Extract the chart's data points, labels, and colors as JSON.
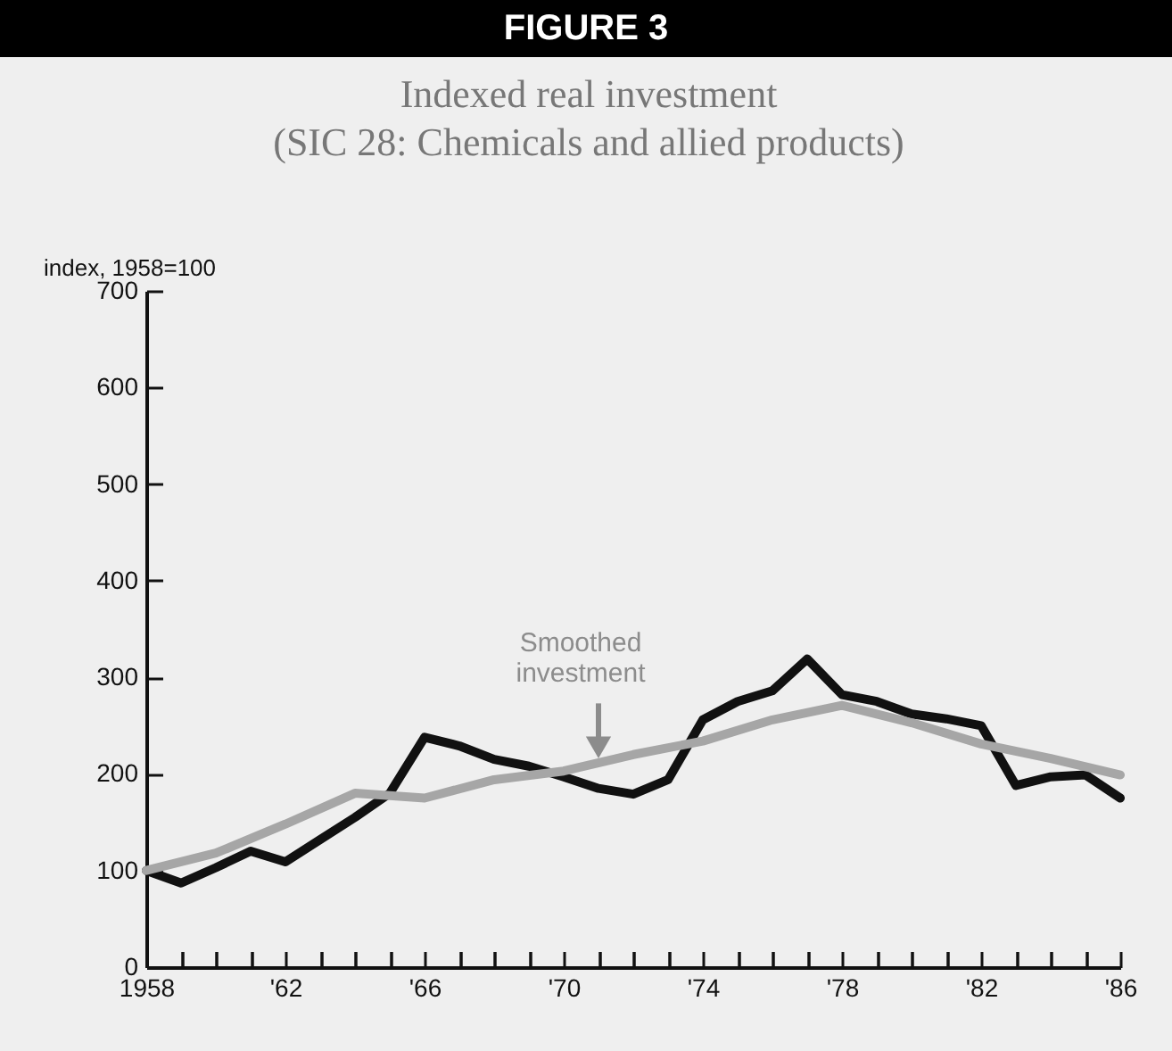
{
  "chart_data": {
    "type": "line",
    "title": "FIGURE 3",
    "subtitle": "Indexed real investment\n(SIC 28: Chemicals and allied products)",
    "ylabel": "index, 1958=100",
    "series": [
      {
        "color": "#111111",
        "x": [
          1958,
          1959,
          1960,
          1961,
          1962,
          1963,
          1964,
          1965,
          1966,
          1967,
          1968,
          1969,
          1970,
          1971,
          1972,
          1973,
          1974,
          1975,
          1976,
          1977,
          1978,
          1979,
          1980,
          1981,
          1982,
          1983,
          1984,
          1985,
          1986
        ],
        "values": [
          100,
          87,
          103,
          120,
          109,
          132,
          155,
          180,
          238,
          229,
          215,
          208,
          197,
          185,
          179,
          194,
          256,
          275,
          286,
          319,
          282,
          275,
          262,
          257,
          250,
          188,
          197,
          199,
          175
        ]
      },
      {
        "color": "#a6a6a6",
        "x": [
          1958,
          1960,
          1962,
          1964,
          1966,
          1968,
          1970,
          1972,
          1974,
          1976,
          1978,
          1980,
          1982,
          1984,
          1986
        ],
        "values": [
          100,
          118,
          148,
          180,
          175,
          194,
          203,
          220,
          234,
          256,
          271,
          253,
          231,
          216,
          199
        ]
      }
    ],
    "annotations": [
      {
        "text": "Smoothed investment",
        "x": 1971,
        "y": 210
      }
    ],
    "xlim": [
      1958,
      1986
    ],
    "xticks": [
      1958,
      {
        "value": 1959,
        "label": null
      },
      {
        "value": 1960,
        "label": null
      },
      {
        "value": 1961,
        "label": null
      },
      {
        "value": 1962,
        "label": "'62"
      },
      {
        "value": 1963,
        "label": null
      },
      {
        "value": 1964,
        "label": null
      },
      {
        "value": 1965,
        "label": null
      },
      {
        "value": 1966,
        "label": "'66"
      },
      {
        "value": 1967,
        "label": null
      },
      {
        "value": 1968,
        "label": null
      },
      {
        "value": 1969,
        "label": null
      },
      {
        "value": 1970,
        "label": "'70"
      },
      {
        "value": 1971,
        "label": null
      },
      {
        "value": 1972,
        "label": null
      },
      {
        "value": 1973,
        "label": null
      },
      {
        "value": 1974,
        "label": "'74"
      },
      {
        "value": 1975,
        "label": null
      },
      {
        "value": 1976,
        "label": null
      },
      {
        "value": 1977,
        "label": null
      },
      {
        "value": 1978,
        "label": "'78"
      },
      {
        "value": 1979,
        "label": null
      },
      {
        "value": 1980,
        "label": null
      },
      {
        "value": 1981,
        "label": null
      },
      {
        "value": 1982,
        "label": "'82"
      },
      {
        "value": 1983,
        "label": null
      },
      {
        "value": 1984,
        "label": null
      },
      {
        "value": 1985,
        "label": null
      },
      {
        "value": 1986,
        "label": "'86"
      }
    ],
    "ylim": [
      0,
      700
    ],
    "yticks": [
      0,
      100,
      200,
      300,
      400,
      500,
      600,
      700
    ],
    "grid": false,
    "legend": false,
    "marker": "none",
    "line_style": "solid"
  }
}
